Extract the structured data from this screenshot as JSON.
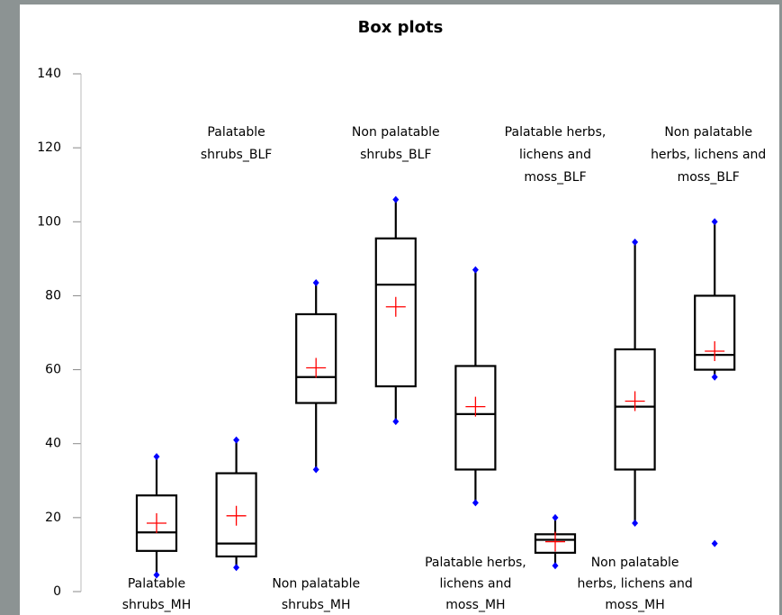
{
  "chart_data": {
    "type": "box",
    "title": "Box plots",
    "ylim": [
      0,
      140
    ],
    "yticks": [
      0,
      20,
      40,
      60,
      80,
      100,
      120,
      140
    ],
    "box_color": "#000000",
    "mean_color": "#ff0000",
    "whisker_end_color": "#0000ff",
    "boxes": [
      {
        "label": [
          "Palatable",
          "shrubs_MH"
        ],
        "min": 4.5,
        "q1": 11,
        "median": 16,
        "q3": 26,
        "max": 36.5,
        "mean": 18.5,
        "outliers": []
      },
      {
        "label": [
          "Palatable",
          "shrubs_BLF"
        ],
        "min": 6.5,
        "q1": 9.5,
        "median": 13,
        "q3": 32,
        "max": 41,
        "mean": 20.5,
        "outliers": []
      },
      {
        "label": [
          "Non palatable",
          "shrubs_MH"
        ],
        "min": 33,
        "q1": 51,
        "median": 58,
        "q3": 75,
        "max": 83.5,
        "mean": 60.5,
        "outliers": []
      },
      {
        "label": [
          "Non palatable",
          "shrubs_BLF"
        ],
        "min": 46,
        "q1": 55.5,
        "median": 83,
        "q3": 95.5,
        "max": 106,
        "mean": 77,
        "outliers": []
      },
      {
        "label": [
          "Palatable herbs,",
          "lichens and",
          "moss_MH"
        ],
        "min": 24,
        "q1": 33,
        "median": 48,
        "q3": 61,
        "max": 87,
        "mean": 50,
        "outliers": []
      },
      {
        "label": [
          "Palatable herbs,",
          "lichens and",
          "moss_BLF"
        ],
        "min": 7,
        "q1": 10.5,
        "median": 14,
        "q3": 15.5,
        "max": 20,
        "mean": 13.5,
        "outliers": []
      },
      {
        "label": [
          "Non palatable",
          "herbs, lichens and",
          "moss_MH"
        ],
        "min": 18.5,
        "q1": 33,
        "median": 50,
        "q3": 65.5,
        "max": 94.5,
        "mean": 51.5,
        "outliers": []
      },
      {
        "label": [
          "Non palatable",
          "herbs, lichens and",
          "moss_BLF"
        ],
        "min": 58,
        "q1": 60,
        "median": 64,
        "q3": 80,
        "max": 100,
        "mean": 65,
        "outliers": [
          13
        ]
      }
    ]
  }
}
